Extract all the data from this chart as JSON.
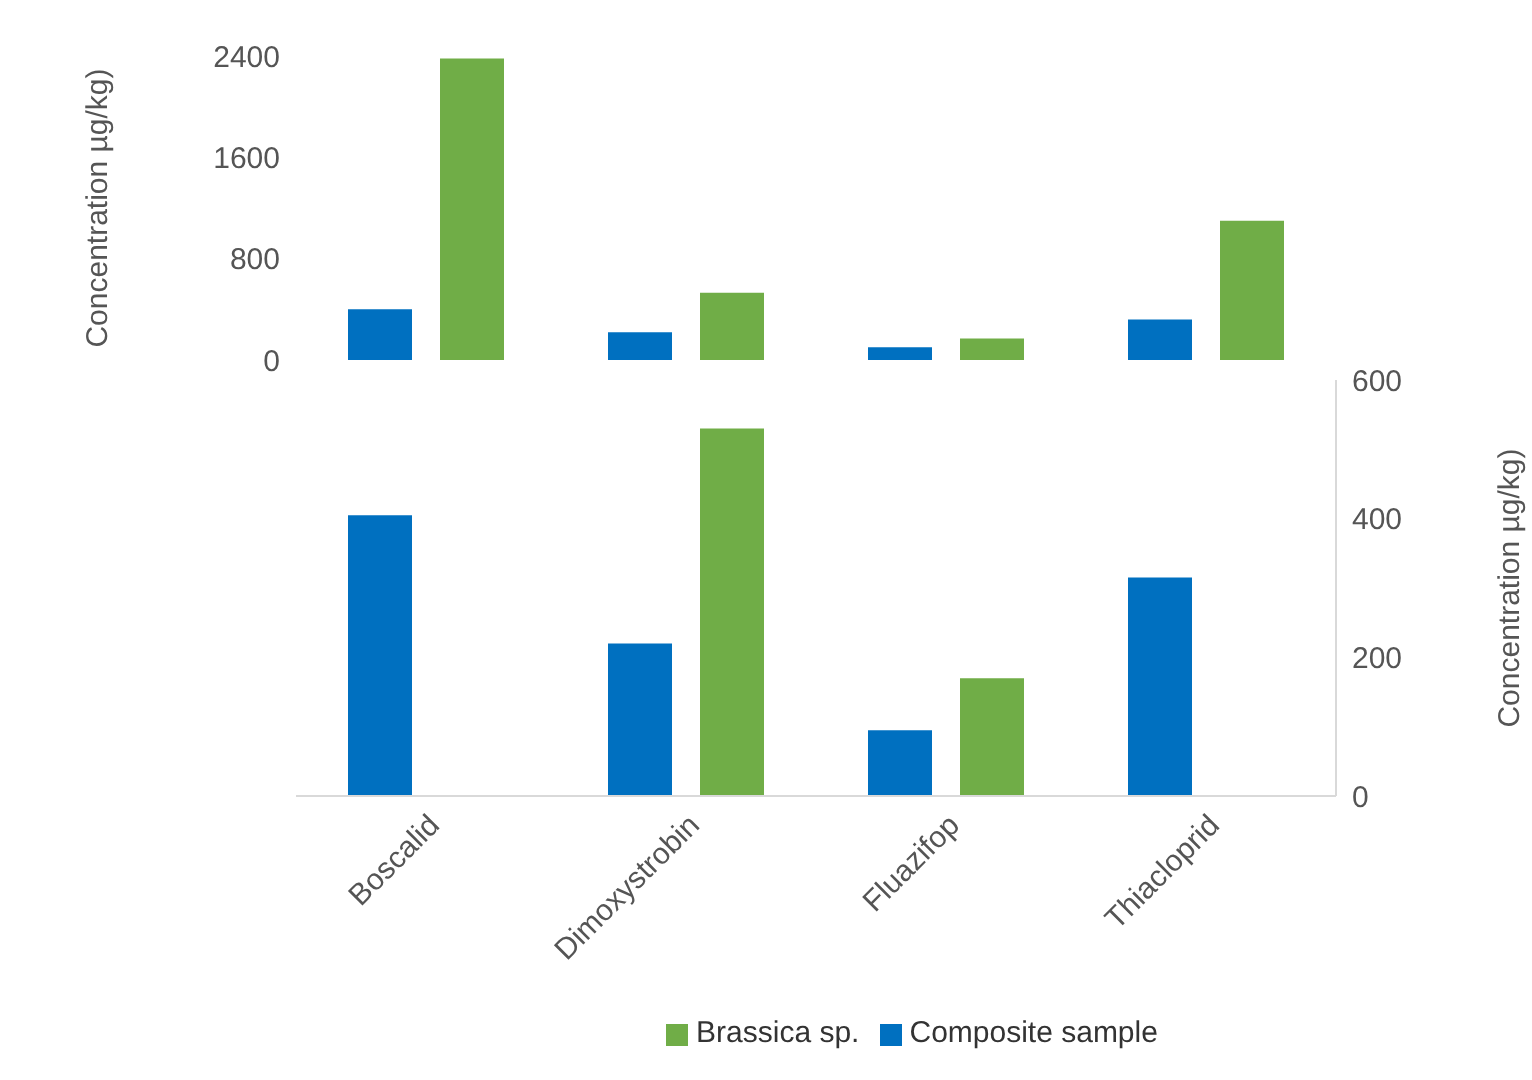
{
  "chart_data": [
    {
      "type": "bar",
      "ylabel": "Concentration µg/kg)",
      "series": [
        {
          "color": "#0070c0",
          "values": [
            400,
            220,
            100,
            320
          ]
        },
        {
          "color": "#70ad47",
          "values": [
            2380,
            530,
            170,
            1100
          ]
        }
      ],
      "ylim": [
        0,
        2400
      ],
      "yticks": [
        0,
        800,
        1600,
        2400
      ],
      "tick_labels": "y"
    },
    {
      "type": "bar",
      "y2label": "Concentration µg/kg)",
      "categories": [
        "Boscalid",
        "Dimoxystrobin",
        "Fluazifop",
        "Thiacloprid"
      ],
      "series": [
        {
          "name": "Composite sample",
          "color": "#0070c0",
          "axis": "y2",
          "values": [
            405,
            220,
            95,
            315
          ]
        },
        {
          "name": "Brassica sp.",
          "color": "#70ad47",
          "axis": "y2",
          "values": [
            null,
            530,
            170,
            null
          ]
        }
      ],
      "y2lim": [
        0,
        600
      ],
      "y2ticks": [
        0,
        200,
        400,
        600
      ],
      "legend": "bottom"
    }
  ]
}
